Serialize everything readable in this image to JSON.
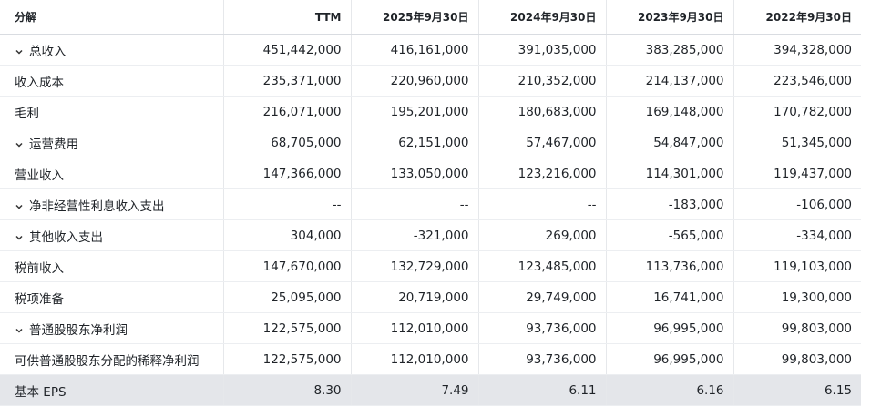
{
  "table": {
    "header": [
      "分解",
      "TTM",
      "2025年9月30日",
      "2024年9月30日",
      "2023年9月30日",
      "2022年9月30日"
    ],
    "rows": [
      {
        "label": "总收入",
        "expandable": true,
        "cells": [
          "451,442,000",
          "416,161,000",
          "391,035,000",
          "383,285,000",
          "394,328,000"
        ]
      },
      {
        "label": "收入成本",
        "expandable": false,
        "cells": [
          "235,371,000",
          "220,960,000",
          "210,352,000",
          "214,137,000",
          "223,546,000"
        ]
      },
      {
        "label": "毛利",
        "expandable": false,
        "cells": [
          "216,071,000",
          "195,201,000",
          "180,683,000",
          "169,148,000",
          "170,782,000"
        ]
      },
      {
        "label": "运营费用",
        "expandable": true,
        "cells": [
          "68,705,000",
          "62,151,000",
          "57,467,000",
          "54,847,000",
          "51,345,000"
        ]
      },
      {
        "label": "营业收入",
        "expandable": false,
        "cells": [
          "147,366,000",
          "133,050,000",
          "123,216,000",
          "114,301,000",
          "119,437,000"
        ]
      },
      {
        "label": "净非经营性利息收入支出",
        "expandable": true,
        "cells": [
          "--",
          "--",
          "--",
          "-183,000",
          "-106,000"
        ]
      },
      {
        "label": "其他收入支出",
        "expandable": true,
        "cells": [
          "304,000",
          "-321,000",
          "269,000",
          "-565,000",
          "-334,000"
        ]
      },
      {
        "label": "税前收入",
        "expandable": false,
        "cells": [
          "147,670,000",
          "132,729,000",
          "123,485,000",
          "113,736,000",
          "119,103,000"
        ]
      },
      {
        "label": "税项准备",
        "expandable": false,
        "cells": [
          "25,095,000",
          "20,719,000",
          "29,749,000",
          "16,741,000",
          "19,300,000"
        ]
      },
      {
        "label": "普通股股东净利润",
        "expandable": true,
        "cells": [
          "122,575,000",
          "112,010,000",
          "93,736,000",
          "96,995,000",
          "99,803,000"
        ]
      },
      {
        "label": "可供普通股股东分配的稀释净利润",
        "expandable": false,
        "cells": [
          "122,575,000",
          "112,010,000",
          "93,736,000",
          "96,995,000",
          "99,803,000"
        ]
      },
      {
        "label": "基本 EPS",
        "expandable": false,
        "cells": [
          "8.30",
          "7.49",
          "6.11",
          "6.16",
          "6.15"
        ]
      }
    ]
  }
}
